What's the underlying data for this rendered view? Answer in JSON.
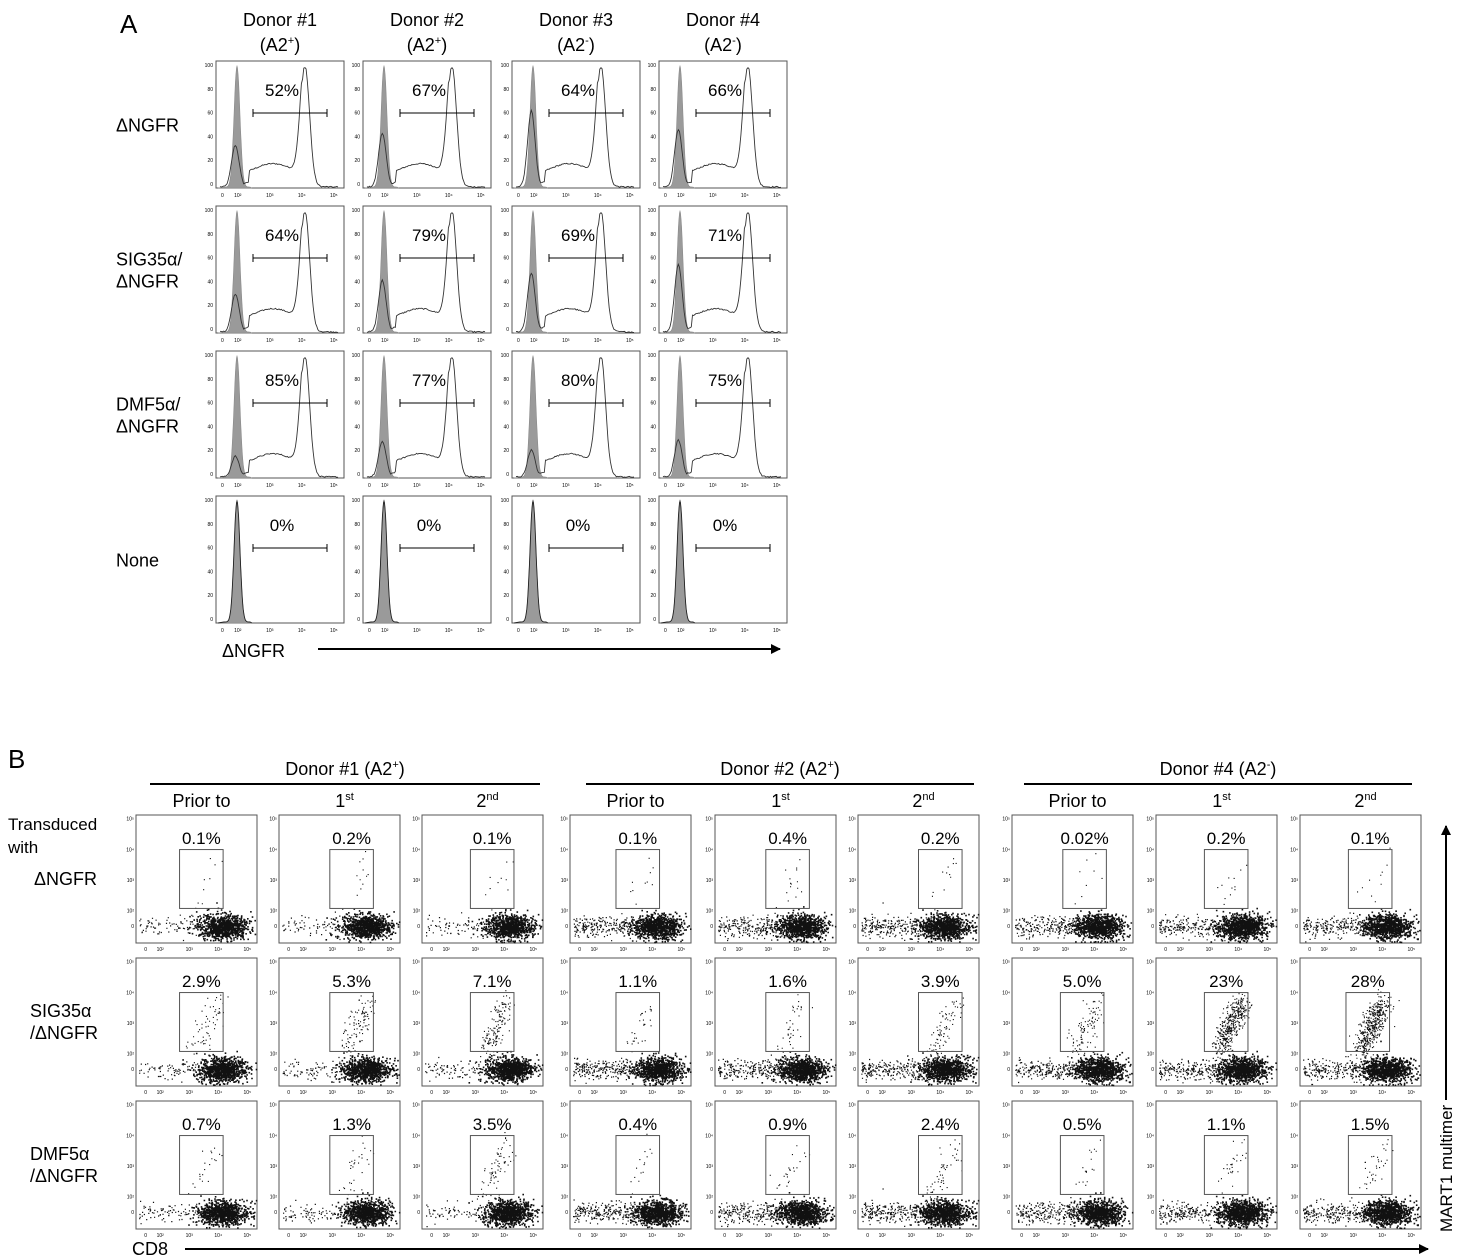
{
  "panel_a": {
    "letter": "A",
    "donors": [
      {
        "name": "Donor #1",
        "allele": "(A2",
        "sup": "+",
        "close": ")"
      },
      {
        "name": "Donor #2",
        "allele": "(A2",
        "sup": "+",
        "close": ")"
      },
      {
        "name": "Donor #3",
        "allele": "(A2",
        "sup": "-",
        "close": ")"
      },
      {
        "name": "Donor #4",
        "allele": "(A2",
        "sup": "-",
        "close": ")"
      }
    ],
    "rows": [
      {
        "label_lines": [
          "ΔNGFR"
        ],
        "percents": [
          "52%",
          "67%",
          "64%",
          "66%"
        ]
      },
      {
        "label_lines": [
          "SIG35α/",
          "ΔNGFR"
        ],
        "percents": [
          "64%",
          "79%",
          "69%",
          "71%"
        ]
      },
      {
        "label_lines": [
          "DMF5α/",
          "ΔNGFR"
        ],
        "percents": [
          "85%",
          "77%",
          "80%",
          "75%"
        ]
      },
      {
        "label_lines": [
          "None"
        ],
        "percents": [
          "0%",
          "0%",
          "0%",
          "0%"
        ]
      }
    ],
    "y_ticks": [
      "100",
      "80",
      "60",
      "40",
      "20",
      "0"
    ],
    "x_ticks": [
      "0",
      "10²",
      "10³",
      "10⁴",
      "10⁵"
    ],
    "x_axis_label": "ΔNGFR"
  },
  "panel_b": {
    "letter": "B",
    "groups": [
      {
        "name": "Donor #1 (A2",
        "sup": "+",
        "close": ")"
      },
      {
        "name": "Donor #2 (A2",
        "sup": "+",
        "close": ")"
      },
      {
        "name": "Donor #4 (A2",
        "sup": "-",
        "close": ")"
      }
    ],
    "stages": [
      {
        "base": "Prior to",
        "sup": ""
      },
      {
        "base": "1",
        "sup": "st"
      },
      {
        "base": "2",
        "sup": "nd"
      }
    ],
    "row_header_lines": [
      "Transduced",
      "with"
    ],
    "rows": [
      {
        "label_lines": [
          "ΔNGFR"
        ],
        "percents": [
          "0.1%",
          "0.2%",
          "0.1%",
          "0.1%",
          "0.4%",
          "0.2%",
          "0.02%",
          "0.2%",
          "0.1%"
        ]
      },
      {
        "label_lines": [
          "SIG35α",
          "/ΔNGFR"
        ],
        "percents": [
          "2.9%",
          "5.3%",
          "7.1%",
          "1.1%",
          "1.6%",
          "3.9%",
          "5.0%",
          "23%",
          "28%"
        ]
      },
      {
        "label_lines": [
          "DMF5α",
          "/ΔNGFR"
        ],
        "percents": [
          "0.7%",
          "1.3%",
          "3.5%",
          "0.4%",
          "0.9%",
          "2.4%",
          "0.5%",
          "1.1%",
          "1.5%"
        ]
      }
    ],
    "y_ticks": [
      "10⁵",
      "10⁴",
      "10³",
      "10²",
      "0"
    ],
    "x_ticks": [
      "0",
      "10²",
      "10³",
      "10⁴",
      "10⁵"
    ],
    "x_axis_label": "CD8",
    "y_axis_label": "MART1 multimer"
  }
}
